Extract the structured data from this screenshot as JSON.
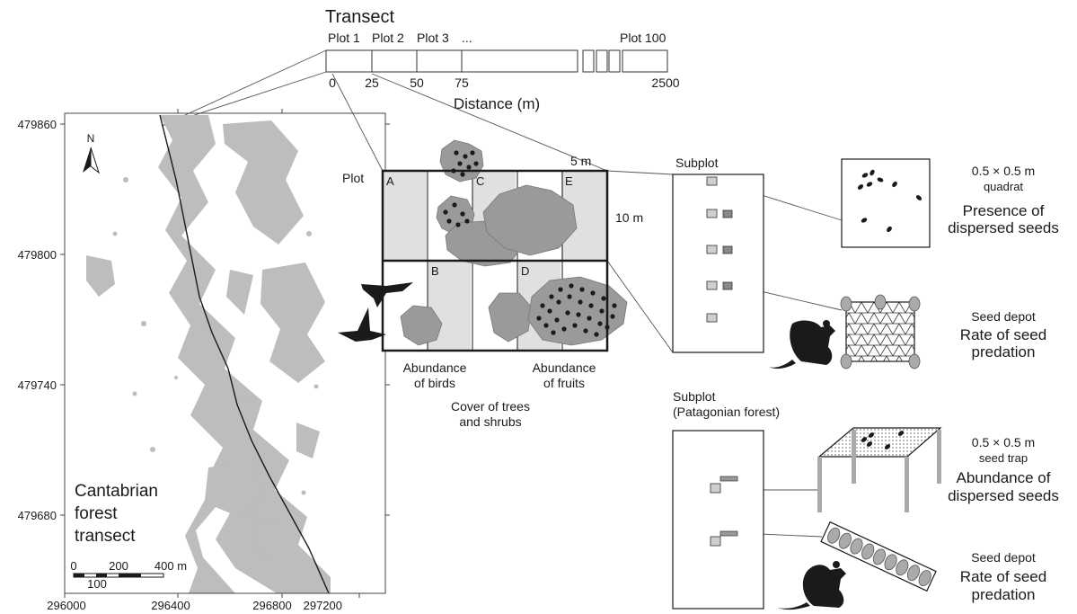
{
  "transect": {
    "title": "Transect",
    "plot_labels": [
      "Plot 1",
      "Plot 2",
      "Plot 3",
      "...",
      "Plot 100"
    ],
    "distance_ticks": [
      "0",
      "25",
      "50",
      "75",
      "2500"
    ],
    "distance_label": "Distance (m)"
  },
  "map": {
    "y_ticks": [
      "479860",
      "479800",
      "479740",
      "479680"
    ],
    "x_ticks": [
      "296000",
      "296400",
      "296800",
      "297200"
    ],
    "north_label": "N",
    "title_lines": [
      "Cantabrian",
      "forest",
      "transect"
    ],
    "scalebar": {
      "labels": [
        "0",
        "200",
        "400 m"
      ],
      "sublabel": "100"
    }
  },
  "plot": {
    "label": "Plot",
    "width_label": "5 m",
    "height_label": "10 m",
    "cells": [
      "A",
      "B",
      "C",
      "D",
      "E"
    ],
    "birds_caption": [
      "Abundance",
      "of birds"
    ],
    "fruits_caption": [
      "Abundance",
      "of fruits"
    ],
    "cover_caption": [
      "Cover of trees",
      "and shrubs"
    ]
  },
  "subplot": {
    "label": "Subplot"
  },
  "patagonian_subplot": {
    "label_lines": [
      "Subplot",
      "(Patagonian forest)"
    ]
  },
  "quadrat": {
    "size": "0.5 × 0.5 m",
    "type": "quadrat",
    "measure_lines": [
      "Presence of",
      "dispersed seeds"
    ]
  },
  "depot_1": {
    "title": "Seed depot",
    "measure_lines": [
      "Rate of seed",
      "predation"
    ]
  },
  "trap": {
    "size": "0.5 × 0.5 m",
    "type": "seed trap",
    "measure_lines": [
      "Abundance of",
      "dispersed seeds"
    ]
  },
  "depot_2": {
    "title": "Seed depot",
    "measure_lines": [
      "Rate of seed",
      "predation"
    ]
  },
  "colors": {
    "forest": "#bdbdbd",
    "shrub": "#9a9a9a",
    "cell": "#e0e0e0",
    "ink": "#1a1a1a"
  }
}
